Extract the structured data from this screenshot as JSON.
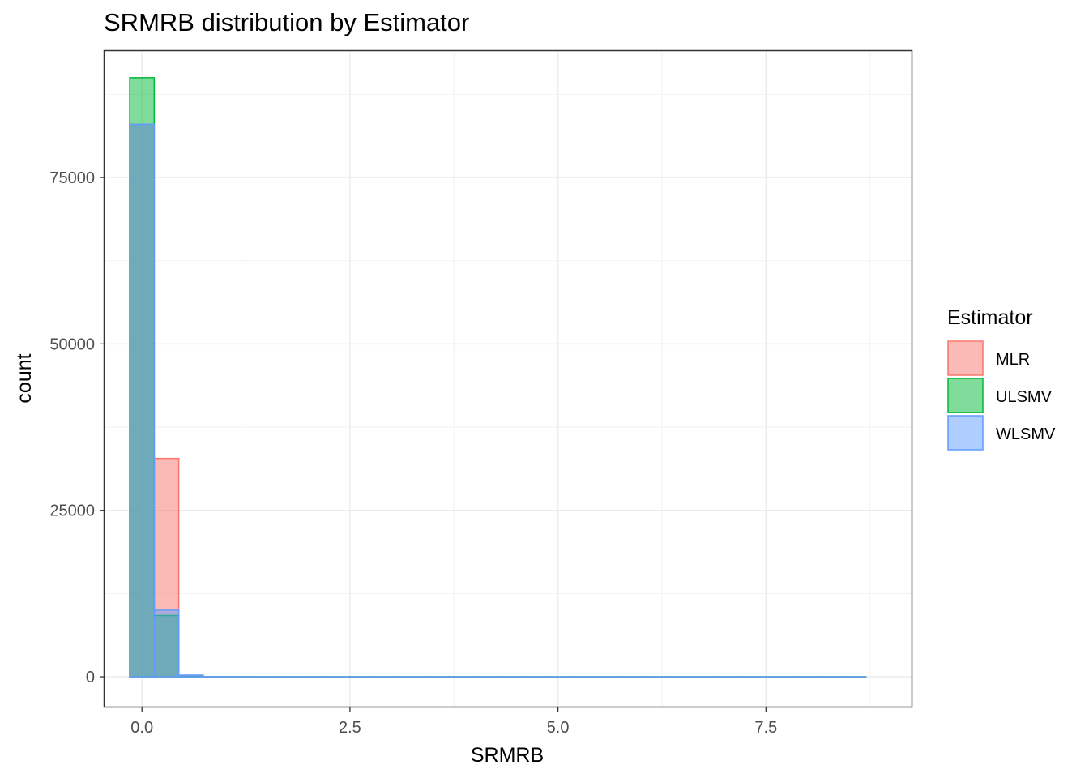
{
  "chart_data": {
    "type": "histogram",
    "title": "SRMRB distribution by Estimator",
    "xlabel": "SRMRB",
    "ylabel": "count",
    "xlim": [
      -0.45,
      9.25
    ],
    "ylim": [
      -4500,
      94000
    ],
    "x_ticks": [
      0.0,
      2.5,
      5.0,
      7.5
    ],
    "x_tick_labels": [
      "0.0",
      "2.5",
      "5.0",
      "7.5"
    ],
    "y_ticks": [
      0,
      25000,
      50000,
      75000
    ],
    "y_tick_labels": [
      "0",
      "25000",
      "50000",
      "75000"
    ],
    "grid": true,
    "legend_title": "Estimator",
    "legend_position": "right",
    "bin_width": 0.295,
    "bin_starts": [
      -0.1475,
      0.1475,
      0.4425,
      0.7375,
      1.0325,
      1.3275,
      1.6225,
      1.9175,
      2.2125,
      2.5075,
      2.8025,
      3.0975,
      3.3925,
      3.6875,
      3.9825,
      4.2775,
      4.5725,
      4.8675,
      5.1625,
      5.4575,
      5.7525,
      6.0475,
      6.3425,
      6.6375,
      6.9325,
      7.2275,
      7.5225,
      7.8175,
      8.1125,
      8.4075
    ],
    "series": [
      {
        "name": "MLR",
        "fill": "#F8766D",
        "outline": "#F8766D",
        "counts": [
          83000,
          32800,
          120,
          10,
          0,
          0,
          0,
          0,
          0,
          0,
          0,
          0,
          0,
          0,
          0,
          0,
          0,
          0,
          0,
          0,
          0,
          0,
          0,
          0,
          0,
          0,
          0,
          0,
          0,
          0
        ]
      },
      {
        "name": "ULSMV",
        "fill": "#00BA38",
        "outline": "#00BA38",
        "counts": [
          90000,
          9200,
          60,
          5,
          0,
          0,
          0,
          0,
          0,
          0,
          0,
          0,
          0,
          0,
          0,
          0,
          0,
          0,
          0,
          0,
          0,
          0,
          0,
          0,
          0,
          0,
          0,
          0,
          0,
          0
        ]
      },
      {
        "name": "WLSMV",
        "fill": "#619CFF",
        "outline": "#619CFF",
        "counts": [
          83000,
          10000,
          250,
          20,
          4,
          2,
          2,
          1,
          1,
          1,
          1,
          1,
          1,
          1,
          1,
          1,
          1,
          1,
          1,
          1,
          1,
          1,
          1,
          1,
          1,
          1,
          1,
          1,
          1,
          1
        ]
      }
    ]
  }
}
